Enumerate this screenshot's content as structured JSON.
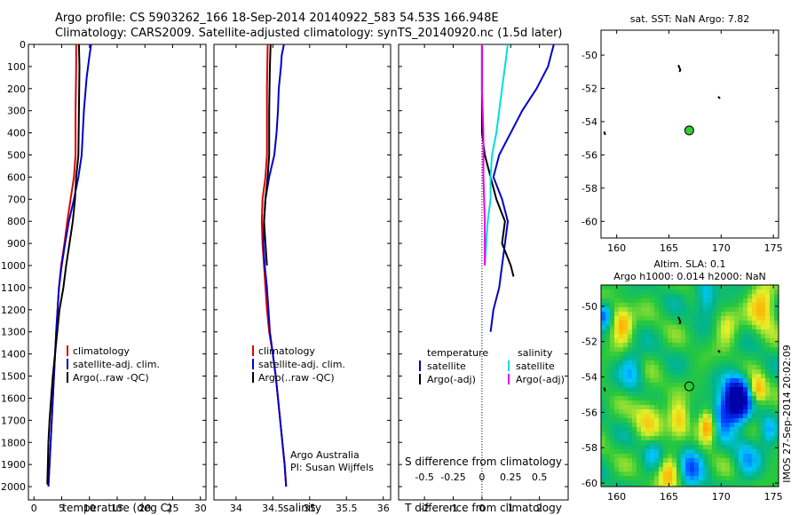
{
  "header": {
    "line1": "Argo profile: CS 5903262_166 18-Sep-2014 20140922_583 54.53S 166.948E",
    "line2": "Climatology: CARS2009. Satellite-adjusted climatology: synTS_20140920.nc (1.5d later)"
  },
  "colors": {
    "climatology": "#dd0000",
    "satellite": "#0000cc",
    "argo": "#000000",
    "sat_salinity": "#00dddd",
    "argo_salinity": "#ee00ee",
    "float_marker": "#33cc33"
  },
  "chart_data": [
    {
      "id": "temperature",
      "type": "line",
      "xlabel": "temperature (deg C)",
      "xlim": [
        -1,
        31
      ],
      "xticks": [
        0,
        5,
        10,
        15,
        20,
        25,
        30
      ],
      "ylim": [
        0,
        2060
      ],
      "yticks": [
        0,
        100,
        200,
        300,
        400,
        500,
        600,
        700,
        800,
        900,
        1000,
        1100,
        1200,
        1300,
        1400,
        1500,
        1600,
        1700,
        1800,
        1900,
        2000
      ],
      "legend": [
        "climatology",
        "satellite-adj. clim.",
        "Argo(..raw -QC)"
      ],
      "series": [
        {
          "name": "climatology",
          "color_key": "climatology",
          "points": [
            [
              7.6,
              0
            ],
            [
              7.6,
              100
            ],
            [
              7.5,
              300
            ],
            [
              7.5,
              500
            ],
            [
              7.2,
              600
            ],
            [
              6.6,
              700
            ],
            [
              6.0,
              800
            ],
            [
              5.5,
              900
            ],
            [
              4.9,
              1000
            ],
            [
              4.5,
              1100
            ],
            [
              4.0,
              1300
            ],
            [
              3.6,
              1500
            ],
            [
              3.2,
              1700
            ],
            [
              2.8,
              1900
            ],
            [
              2.6,
              2000
            ]
          ]
        },
        {
          "name": "satellite-adj. clim.",
          "color_key": "satellite",
          "points": [
            [
              10.3,
              0
            ],
            [
              10.0,
              50
            ],
            [
              9.5,
              150
            ],
            [
              9.0,
              300
            ],
            [
              8.6,
              500
            ],
            [
              8.0,
              600
            ],
            [
              7.2,
              700
            ],
            [
              6.3,
              800
            ],
            [
              5.6,
              900
            ],
            [
              5.0,
              1000
            ],
            [
              4.5,
              1100
            ],
            [
              4.0,
              1300
            ],
            [
              3.6,
              1500
            ],
            [
              3.2,
              1700
            ],
            [
              2.8,
              1900
            ],
            [
              2.6,
              2000
            ]
          ]
        },
        {
          "name": "Argo(..raw -QC)",
          "color_key": "argo",
          "points": [
            [
              8.1,
              0
            ],
            [
              8.2,
              100
            ],
            [
              8.1,
              300
            ],
            [
              8.0,
              500
            ],
            [
              7.6,
              600
            ],
            [
              7.4,
              700
            ],
            [
              7.0,
              800
            ],
            [
              6.4,
              900
            ],
            [
              5.8,
              1000
            ],
            [
              5.3,
              1100
            ],
            [
              4.6,
              1200
            ],
            [
              4.2,
              1300
            ],
            [
              3.8,
              1400
            ],
            [
              3.4,
              1500
            ],
            [
              3.1,
              1600
            ],
            [
              2.8,
              1700
            ],
            [
              2.6,
              1800
            ],
            [
              2.5,
              1900
            ],
            [
              2.4,
              1990
            ]
          ]
        }
      ]
    },
    {
      "id": "salinity",
      "type": "line",
      "xlabel": "salinity",
      "xlim": [
        33.7,
        36.1
      ],
      "xticks": [
        34,
        34.5,
        35,
        35.5,
        36
      ],
      "ylim": [
        0,
        2060
      ],
      "legend": [
        "climatology",
        "satellite-adj. clim.",
        "Argo(..raw -QC)"
      ],
      "series": [
        {
          "name": "climatology",
          "color_key": "climatology",
          "points": [
            [
              34.43,
              0
            ],
            [
              34.42,
              200
            ],
            [
              34.42,
              500
            ],
            [
              34.4,
              600
            ],
            [
              34.36,
              700
            ],
            [
              34.35,
              800
            ],
            [
              34.36,
              900
            ],
            [
              34.38,
              1000
            ],
            [
              34.4,
              1100
            ],
            [
              34.42,
              1200
            ],
            [
              34.45,
              1300
            ],
            [
              34.5,
              1400
            ],
            [
              34.54,
              1500
            ],
            [
              34.57,
              1600
            ],
            [
              34.6,
              1700
            ],
            [
              34.63,
              1800
            ],
            [
              34.66,
              1900
            ],
            [
              34.68,
              2000
            ]
          ]
        },
        {
          "name": "satellite-adj. clim.",
          "color_key": "satellite",
          "points": [
            [
              34.65,
              0
            ],
            [
              34.62,
              50
            ],
            [
              34.61,
              100
            ],
            [
              34.58,
              200
            ],
            [
              34.57,
              300
            ],
            [
              34.55,
              400
            ],
            [
              34.52,
              500
            ],
            [
              34.45,
              600
            ],
            [
              34.4,
              700
            ],
            [
              34.38,
              800
            ],
            [
              34.37,
              900
            ],
            [
              34.39,
              1000
            ],
            [
              34.42,
              1100
            ],
            [
              34.44,
              1200
            ],
            [
              34.46,
              1300
            ],
            [
              34.5,
              1400
            ],
            [
              34.54,
              1500
            ],
            [
              34.57,
              1600
            ],
            [
              34.6,
              1700
            ],
            [
              34.63,
              1800
            ],
            [
              34.66,
              1900
            ],
            [
              34.68,
              2000
            ]
          ]
        },
        {
          "name": "Argo(..raw -QC)",
          "color_key": "argo",
          "points": [
            [
              34.47,
              0
            ],
            [
              34.46,
              100
            ],
            [
              34.45,
              300
            ],
            [
              34.45,
              500
            ],
            [
              34.43,
              600
            ],
            [
              34.4,
              700
            ],
            [
              34.38,
              800
            ],
            [
              34.4,
              900
            ],
            [
              34.42,
              1000
            ]
          ]
        }
      ],
      "annotation": [
        "Argo Australia",
        "PI: Susan Wijffels"
      ]
    },
    {
      "id": "difference",
      "type": "line",
      "xlabel": "T difference from climatology",
      "xlabel_top": "S difference from climatology",
      "xlim": [
        -2.9,
        3.0
      ],
      "xticks": [
        -2,
        -1,
        0,
        1,
        2
      ],
      "xticks_top": [
        {
          "at": -2,
          "label": "-0.5"
        },
        {
          "at": -1,
          "label": "-0.25"
        },
        {
          "at": 0,
          "label": "0"
        },
        {
          "at": 1,
          "label": "0.25"
        },
        {
          "at": 2,
          "label": "0.5"
        }
      ],
      "ylim": [
        0,
        2060
      ],
      "legend_temperature_title": "temperature",
      "legend_salinity_title": "salinity",
      "legend": [
        {
          "label": "satellite",
          "color_key": "satellite",
          "column": "left"
        },
        {
          "label": "Argo(-adj)",
          "color_key": "argo",
          "column": "left"
        },
        {
          "label": "satellite",
          "color_key": "sat_salinity",
          "column": "right"
        },
        {
          "label": "Argo(-adj)",
          "color_key": "argo_salinity",
          "column": "right"
        }
      ],
      "series": [
        {
          "name": "T satellite",
          "color_key": "satellite",
          "points": [
            [
              2.5,
              0
            ],
            [
              2.3,
              100
            ],
            [
              1.9,
              200
            ],
            [
              1.4,
              300
            ],
            [
              1.0,
              400
            ],
            [
              0.6,
              500
            ],
            [
              0.4,
              600
            ],
            [
              0.7,
              700
            ],
            [
              0.9,
              800
            ],
            [
              0.8,
              900
            ],
            [
              0.7,
              1000
            ],
            [
              0.6,
              1100
            ],
            [
              0.4,
              1200
            ],
            [
              0.3,
              1300
            ]
          ]
        },
        {
          "name": "T Argo(-adj)",
          "color_key": "argo",
          "points": [
            [
              0.0,
              0
            ],
            [
              0.0,
              200
            ],
            [
              0.0,
              400
            ],
            [
              0.1,
              500
            ],
            [
              0.3,
              600
            ],
            [
              0.5,
              700
            ],
            [
              0.8,
              800
            ],
            [
              0.7,
              900
            ],
            [
              1.0,
              1000
            ],
            [
              1.1,
              1050
            ]
          ]
        },
        {
          "name": "S satellite",
          "color_key": "sat_salinity",
          "points": [
            [
              0.9,
              0
            ],
            [
              0.8,
              100
            ],
            [
              0.7,
              200
            ],
            [
              0.6,
              300
            ],
            [
              0.5,
              400
            ],
            [
              0.35,
              500
            ],
            [
              0.3,
              600
            ],
            [
              0.3,
              700
            ],
            [
              0.2,
              800
            ],
            [
              0.15,
              900
            ],
            [
              0.1,
              1000
            ]
          ]
        },
        {
          "name": "S Argo(-adj)",
          "color_key": "argo_salinity",
          "points": [
            [
              0.0,
              0
            ],
            [
              0.0,
              200
            ],
            [
              0.05,
              400
            ],
            [
              0.05,
              600
            ],
            [
              0.1,
              800
            ],
            [
              0.1,
              1000
            ]
          ]
        }
      ]
    },
    {
      "id": "sst_map",
      "type": "scatter",
      "title": "sat. SST: NaN Argo: 7.82",
      "xlim": [
        158.5,
        175.5
      ],
      "xticks": [
        160,
        165,
        170,
        175
      ],
      "ylim": [
        -61,
        -48.5
      ],
      "yticks": [
        -50,
        -52,
        -54,
        -56,
        -58,
        -60
      ],
      "float": [
        166.948,
        -54.53
      ],
      "tracks": [
        [
          [
            165.9,
            -50.6
          ],
          [
            166.1,
            -50.9
          ],
          [
            166.0,
            -51.0
          ]
        ],
        [
          [
            169.7,
            -52.5
          ],
          [
            169.9,
            -52.6
          ]
        ],
        [
          [
            158.8,
            -54.6
          ],
          [
            158.9,
            -54.8
          ]
        ]
      ]
    },
    {
      "id": "sla_map",
      "type": "heatmap",
      "title_line1": "Altim. SLA: 0.1",
      "title_line2": "Argo h1000: 0.014 h2000: NaN",
      "xlim": [
        158.5,
        175.5
      ],
      "xticks": [
        160,
        165,
        170,
        175
      ],
      "ylim": [
        -60.2,
        -48.8
      ],
      "yticks": [
        -50,
        -52,
        -54,
        -56,
        -58,
        -60
      ],
      "float": [
        166.948,
        -54.53
      ],
      "tracks": [
        [
          [
            165.9,
            -50.6
          ],
          [
            166.1,
            -50.9
          ],
          [
            166.0,
            -51.0
          ]
        ],
        [
          [
            169.7,
            -52.5
          ],
          [
            169.9,
            -52.6
          ]
        ],
        [
          [
            158.8,
            -54.6
          ],
          [
            158.9,
            -54.8
          ]
        ]
      ],
      "anomalies": [
        {
          "lon": 171.5,
          "lat": -55.3,
          "amp": -1.4,
          "r": 1.2
        },
        {
          "lon": 170.0,
          "lat": -56.2,
          "amp": -0.6,
          "r": 1.1
        },
        {
          "lon": 168.8,
          "lat": -56.8,
          "amp": 0.7,
          "r": 0.9
        },
        {
          "lon": 166.0,
          "lat": -56.5,
          "amp": 0.5,
          "r": 1.0
        },
        {
          "lon": 163.0,
          "lat": -56.2,
          "amp": 0.35,
          "r": 1.3
        },
        {
          "lon": 167.0,
          "lat": -59.0,
          "amp": -0.55,
          "r": 1.2
        },
        {
          "lon": 165.0,
          "lat": -59.5,
          "amp": 0.45,
          "r": 1.1
        },
        {
          "lon": 160.5,
          "lat": -51.0,
          "amp": 0.55,
          "r": 1.0
        },
        {
          "lon": 158.8,
          "lat": -50.5,
          "amp": -0.55,
          "r": 0.7
        },
        {
          "lon": 174.0,
          "lat": -50.0,
          "amp": 0.55,
          "r": 1.2
        },
        {
          "lon": 168.5,
          "lat": -49.5,
          "amp": -0.45,
          "r": 1.0
        },
        {
          "lon": 173.5,
          "lat": -54.8,
          "amp": 0.55,
          "r": 0.8
        },
        {
          "lon": 172.5,
          "lat": -58.6,
          "amp": -0.35,
          "r": 1.2
        },
        {
          "lon": 161.5,
          "lat": -53.6,
          "amp": -0.35,
          "r": 1.1
        },
        {
          "lon": 170.5,
          "lat": -51.2,
          "amp": 0.3,
          "r": 1.0
        },
        {
          "lon": 163.5,
          "lat": -58.3,
          "amp": -0.3,
          "r": 0.9
        },
        {
          "lon": 174.5,
          "lat": -57.0,
          "amp": -0.4,
          "r": 0.8
        }
      ],
      "side_label": "IMOS 27-Sep-2014 20:02:09"
    }
  ]
}
